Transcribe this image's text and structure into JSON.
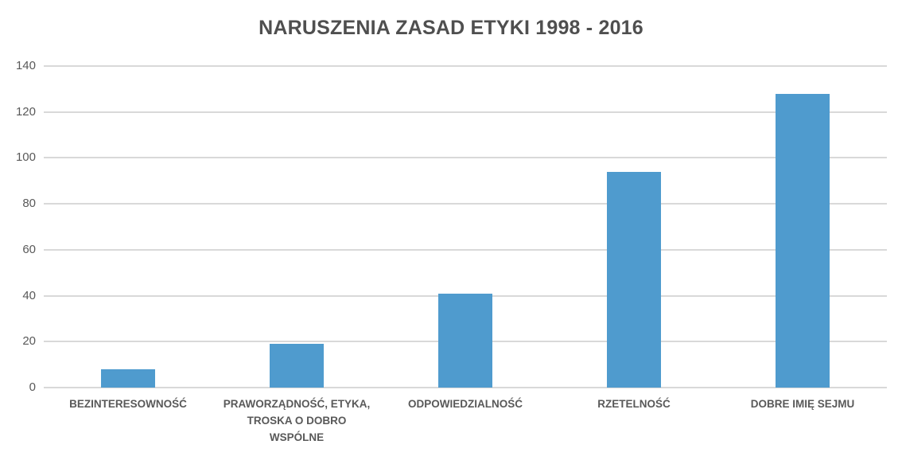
{
  "title": "NARUSZENIA ZASAD ETYKI 1998 - 2016",
  "chart_data": {
    "type": "bar",
    "title": "NARUSZENIA ZASAD ETYKI 1998 - 2016",
    "categories": [
      "BEZINTERESOWNOŚĆ",
      "PRAWORZĄDNOŚĆ, ETYKA, TROSKA O DOBRO WSPÓLNE",
      "ODPOWIEDZIALNOŚĆ",
      "RZETELNOŚĆ",
      "DOBRE IMIĘ SEJMU"
    ],
    "category_label_lines": [
      [
        "BEZINTERESOWNOŚĆ"
      ],
      [
        "PRAWORZĄDNOŚĆ, ETYKA,",
        "TROSKA O DOBRO",
        "WSPÓLNE"
      ],
      [
        "ODPOWIEDZIALNOŚĆ"
      ],
      [
        "RZETELNOŚĆ"
      ],
      [
        "DOBRE IMIĘ SEJMU"
      ]
    ],
    "values": [
      8,
      19,
      41,
      94,
      128
    ],
    "xlabel": "",
    "ylabel": "",
    "ylim": [
      0,
      140
    ],
    "yticks": [
      0,
      20,
      40,
      60,
      80,
      100,
      120,
      140
    ],
    "grid": true,
    "legend": false,
    "colors": {
      "bar": "#4f9bce",
      "gridline": "#d9d9d9",
      "axis_text": "#595959",
      "title_text": "#4f4f4f",
      "background": "#ffffff"
    }
  }
}
